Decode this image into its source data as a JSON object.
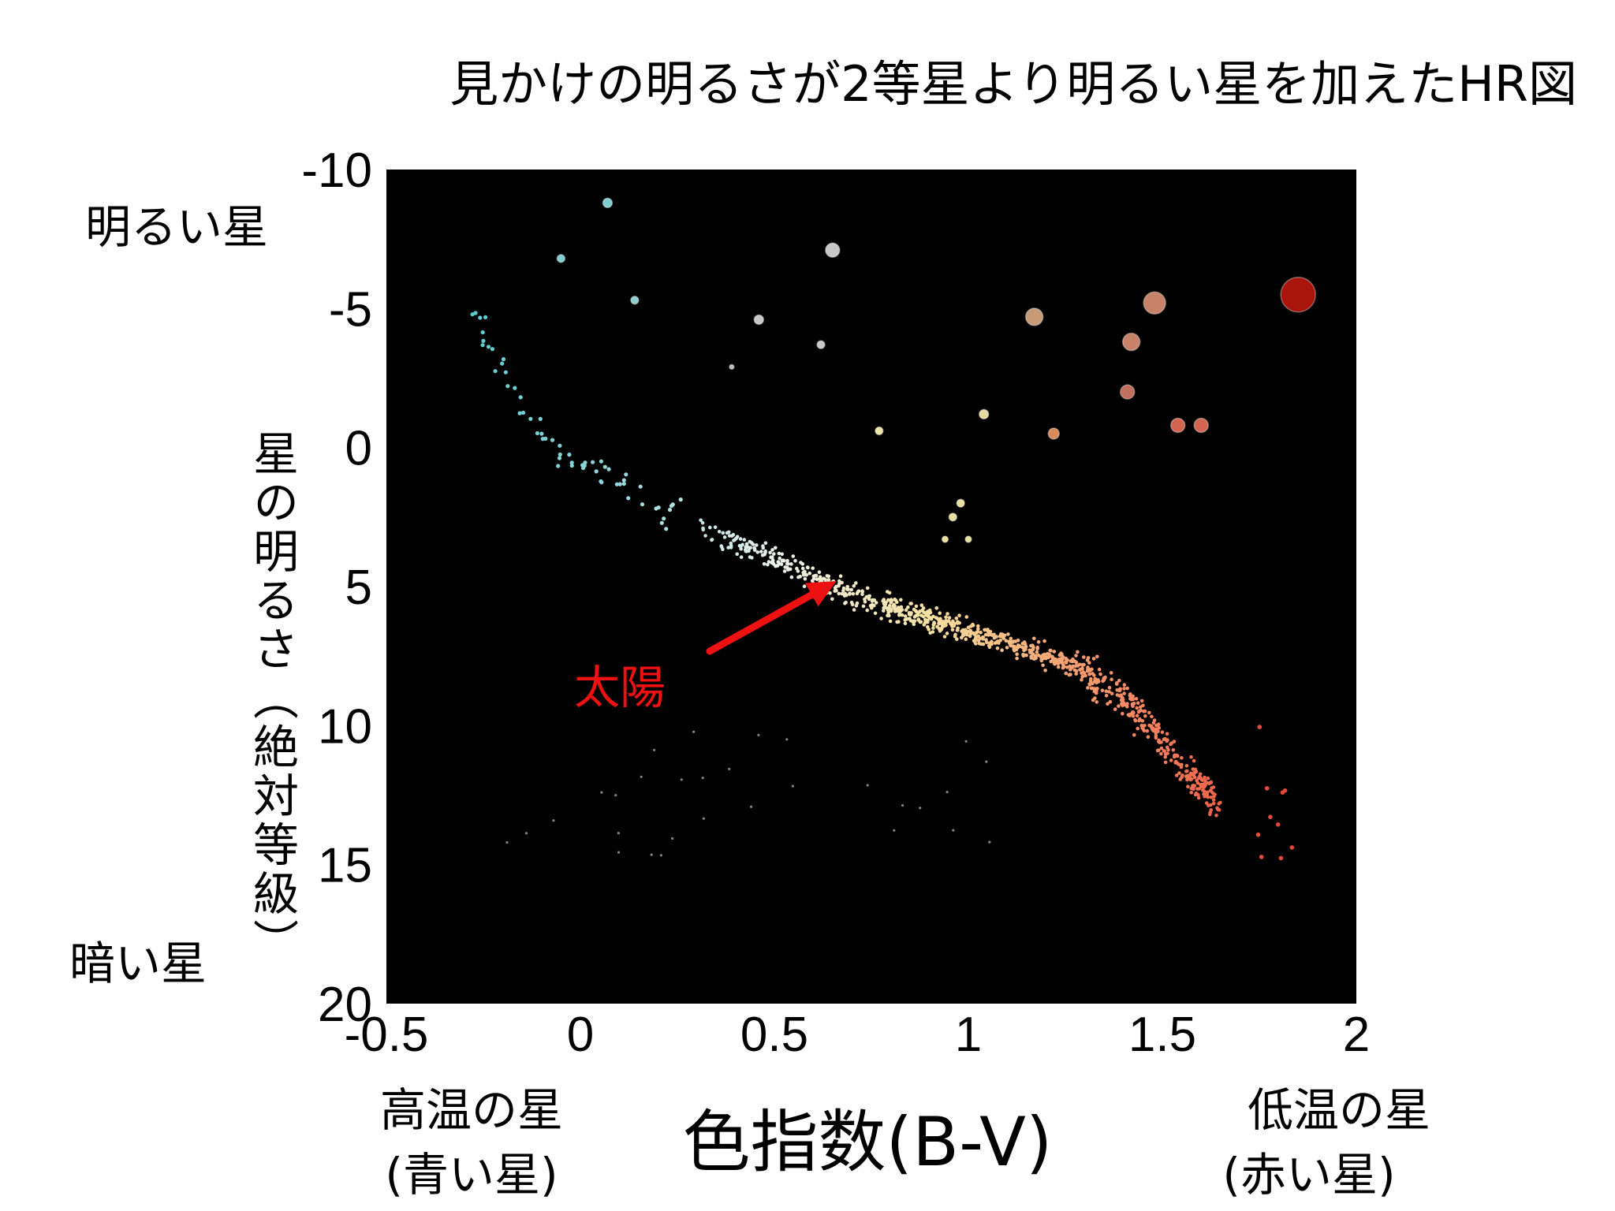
{
  "chart_data": {
    "type": "scatter",
    "title": "見かけの明るさが2等星より明るい星を加えたHR図",
    "xlabel": "色指数(B-V)",
    "ylabel": "星の明るさ（絶対等級）",
    "xlim": [
      -0.5,
      2
    ],
    "ylim": [
      20,
      -10
    ],
    "y_inverted": true,
    "xticks": [
      -0.5,
      0,
      0.5,
      1,
      1.5,
      2
    ],
    "yticks": [
      -10,
      -5,
      0,
      5,
      10,
      15,
      20
    ],
    "xtick_labels": [
      "-0.5",
      "0",
      "0.5",
      "1",
      "1.5",
      "2"
    ],
    "ytick_labels": [
      "-10",
      "-5",
      "0",
      "5",
      "10",
      "15",
      "20"
    ],
    "background": "#000000",
    "annotations": {
      "bright": "明るい星",
      "dim": "暗い星",
      "hot": "高温の星",
      "hot_sub": "(青い星)",
      "cool": "低温の星",
      "cool_sub": "(赤い星)",
      "sun_label": "太陽"
    },
    "sun": {
      "x": 0.66,
      "y": 4.8,
      "color": "#ee1111"
    },
    "giants": [
      {
        "x": 0.07,
        "y": -8.8,
        "size": 6,
        "color": "#7fcfd2"
      },
      {
        "x": -0.05,
        "y": -6.8,
        "size": 5,
        "color": "#7fcfd2"
      },
      {
        "x": 0.14,
        "y": -5.3,
        "size": 5,
        "color": "#8fcfd0"
      },
      {
        "x": 0.65,
        "y": -7.1,
        "size": 9,
        "color": "#c8c8c8"
      },
      {
        "x": 0.46,
        "y": -4.6,
        "size": 6,
        "color": "#c8c8c8"
      },
      {
        "x": 0.62,
        "y": -3.7,
        "size": 5,
        "color": "#c8c8c8"
      },
      {
        "x": 0.39,
        "y": -2.9,
        "size": 3,
        "color": "#bbbbbb"
      },
      {
        "x": 1.17,
        "y": -4.7,
        "size": 11,
        "color": "#c89b78"
      },
      {
        "x": 1.48,
        "y": -5.2,
        "size": 14,
        "color": "#c8826a"
      },
      {
        "x": 1.42,
        "y": -3.8,
        "size": 11,
        "color": "#c8826a"
      },
      {
        "x": 1.41,
        "y": -2.0,
        "size": 9,
        "color": "#c06e5e"
      },
      {
        "x": 1.54,
        "y": -0.8,
        "size": 9,
        "color": "#d26450"
      },
      {
        "x": 1.6,
        "y": -0.8,
        "size": 9,
        "color": "#d26450"
      },
      {
        "x": 1.22,
        "y": -0.5,
        "size": 7,
        "color": "#d88a5a"
      },
      {
        "x": 1.85,
        "y": -5.5,
        "size": 22,
        "color": "#a8150c"
      },
      {
        "x": 0.77,
        "y": -0.6,
        "size": 5,
        "color": "#ece6a8"
      },
      {
        "x": 1.04,
        "y": -1.2,
        "size": 6,
        "color": "#e6d9a0"
      },
      {
        "x": 0.98,
        "y": 2.0,
        "size": 5,
        "color": "#e8e0a0"
      },
      {
        "x": 0.96,
        "y": 2.5,
        "size": 5,
        "color": "#e8e0a0"
      },
      {
        "x": 0.94,
        "y": 3.3,
        "size": 4,
        "color": "#e8e0a0"
      },
      {
        "x": 1.0,
        "y": 3.3,
        "size": 4,
        "color": "#e8e0a0"
      }
    ]
  }
}
